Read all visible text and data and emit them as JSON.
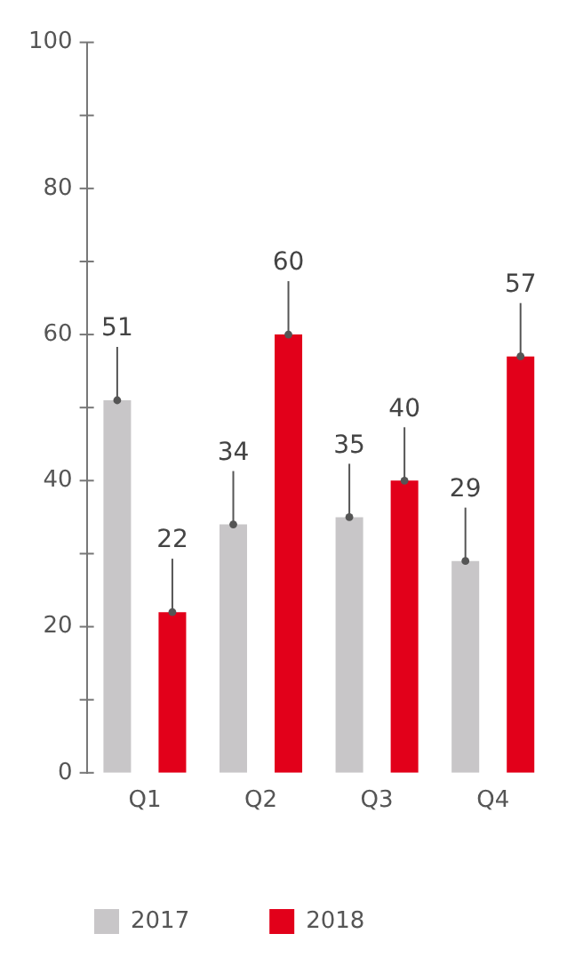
{
  "chart_data": {
    "type": "bar",
    "categories": [
      "Q1",
      "Q2",
      "Q3",
      "Q4"
    ],
    "series": [
      {
        "name": "2017",
        "color": "#c8c6c8",
        "values": [
          51,
          34,
          35,
          29
        ]
      },
      {
        "name": "2018",
        "color": "#e2001a",
        "values": [
          22,
          60,
          40,
          57
        ]
      }
    ],
    "ylim": [
      0,
      100
    ],
    "yticks": [
      0,
      {
        "value": 10,
        "label": null
      },
      20,
      {
        "value": 30,
        "label": null
      },
      40,
      {
        "value": 50,
        "label": null
      },
      60,
      {
        "value": 70,
        "label": null
      },
      80,
      {
        "value": 90,
        "label": null
      },
      100
    ],
    "grid": false,
    "legend": "bottom",
    "data_labels": true
  }
}
